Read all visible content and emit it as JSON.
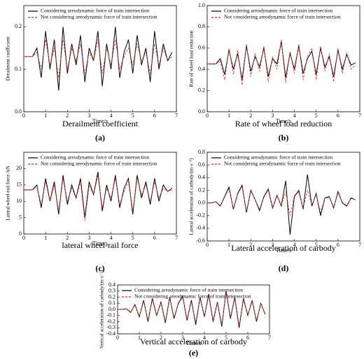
{
  "chart_data": [
    {
      "type": "line",
      "caption": "Derailment coefficient",
      "label": "(a)",
      "x_label": "Time/s",
      "y_label": "Derailment coefficient",
      "x": [
        0,
        0.2,
        0.4,
        0.6,
        0.8,
        1.0,
        1.2,
        1.4,
        1.6,
        1.8,
        2.0,
        2.2,
        2.4,
        2.6,
        2.8,
        3.0,
        3.2,
        3.4,
        3.6,
        3.8,
        4.0,
        4.2,
        4.4,
        4.6,
        4.8,
        5.0,
        5.2,
        5.4,
        5.6,
        5.8,
        6.0,
        6.2,
        6.4,
        6.6,
        6.8
      ],
      "series": [
        {
          "name": "Considering areodynamic force of train intersection",
          "color": "#000000",
          "values": [
            0.13,
            0.13,
            0.13,
            0.15,
            0.08,
            0.19,
            0.1,
            0.17,
            0.05,
            0.2,
            0.09,
            0.16,
            0.11,
            0.18,
            0.07,
            0.15,
            0.12,
            0.19,
            0.06,
            0.16,
            0.1,
            0.2,
            0.08,
            0.14,
            0.17,
            0.09,
            0.18,
            0.11,
            0.15,
            0.07,
            0.19,
            0.1,
            0.16,
            0.12,
            0.14
          ]
        },
        {
          "name": "Not considering areodynamic force of train intersection",
          "color": "#e8262a",
          "values": [
            0.13,
            0.13,
            0.13,
            0.14,
            0.1,
            0.17,
            0.11,
            0.15,
            0.08,
            0.17,
            0.1,
            0.15,
            0.12,
            0.16,
            0.09,
            0.14,
            0.12,
            0.17,
            0.09,
            0.15,
            0.11,
            0.17,
            0.1,
            0.13,
            0.15,
            0.11,
            0.16,
            0.12,
            0.14,
            0.09,
            0.16,
            0.11,
            0.15,
            0.12,
            0.13
          ]
        }
      ],
      "xlim": [
        0,
        7
      ],
      "xticks": [
        0,
        1,
        2,
        3,
        4,
        5,
        6,
        7
      ],
      "ylim": [
        0,
        0.25
      ],
      "yticks": [
        {
          "value": 0,
          "label": "0.0"
        },
        0.1,
        0.2
      ]
    },
    {
      "type": "line",
      "caption": "Rate of wheel load reduction",
      "label": "(b)",
      "x_label": "Time/s",
      "y_label": "Rate of wheel load reduction",
      "x": [
        0,
        0.2,
        0.4,
        0.6,
        0.8,
        1.0,
        1.2,
        1.4,
        1.6,
        1.8,
        2.0,
        2.2,
        2.4,
        2.6,
        2.8,
        3.0,
        3.2,
        3.4,
        3.6,
        3.8,
        4.0,
        4.2,
        4.4,
        4.6,
        4.8,
        5.0,
        5.2,
        5.4,
        5.6,
        5.8,
        6.0,
        6.2,
        6.4,
        6.6,
        6.8
      ],
      "series": [
        {
          "name": "Considering areodynamic force of train intersection",
          "color": "#000000",
          "values": [
            0.45,
            0.45,
            0.45,
            0.5,
            0.35,
            0.58,
            0.4,
            0.55,
            0.3,
            0.62,
            0.38,
            0.52,
            0.42,
            0.6,
            0.33,
            0.5,
            0.45,
            0.66,
            0.32,
            0.55,
            0.4,
            0.62,
            0.36,
            0.5,
            0.57,
            0.35,
            0.6,
            0.42,
            0.52,
            0.33,
            0.58,
            0.4,
            0.54,
            0.44,
            0.46
          ]
        },
        {
          "name": "Not considering areodynamic force of train intersection",
          "color": "#e8262a",
          "values": [
            0.45,
            0.45,
            0.45,
            0.48,
            0.3,
            0.6,
            0.35,
            0.58,
            0.25,
            0.64,
            0.33,
            0.55,
            0.38,
            0.62,
            0.28,
            0.52,
            0.4,
            0.68,
            0.27,
            0.57,
            0.36,
            0.64,
            0.3,
            0.52,
            0.6,
            0.3,
            0.62,
            0.38,
            0.55,
            0.28,
            0.6,
            0.36,
            0.56,
            0.4,
            0.44
          ]
        }
      ],
      "xlim": [
        0,
        7
      ],
      "xticks": [
        0,
        1,
        2,
        3,
        4,
        5,
        6,
        7
      ],
      "ylim": [
        0,
        1.0
      ],
      "yticks": [
        {
          "value": 0,
          "label": "0.0"
        },
        0.2,
        0.4,
        0.6,
        0.8,
        {
          "value": 1,
          "label": "1.0"
        }
      ]
    },
    {
      "type": "line",
      "caption": "lateral wheel-rail force",
      "label": "(c)",
      "x_label": "Time/s",
      "y_label": "Lateral wheel-rail force /kN",
      "x": [
        0,
        0.2,
        0.4,
        0.6,
        0.8,
        1.0,
        1.2,
        1.4,
        1.6,
        1.8,
        2.0,
        2.2,
        2.4,
        2.6,
        2.8,
        3.0,
        3.2,
        3.4,
        3.6,
        3.8,
        4.0,
        4.2,
        4.4,
        4.6,
        4.8,
        5.0,
        5.2,
        5.4,
        5.6,
        5.8,
        6.0,
        6.2,
        6.4,
        6.6,
        6.8
      ],
      "series": [
        {
          "name": "Considering areodynamic force of train intersection",
          "color": "#000000",
          "values": [
            13.5,
            13.5,
            13.5,
            15,
            8,
            17,
            10,
            16,
            6,
            18,
            9,
            15,
            11,
            17,
            5,
            16,
            12,
            19,
            7,
            15,
            10,
            18,
            8,
            14,
            17,
            6,
            18,
            11,
            16,
            9,
            17,
            10,
            15,
            13,
            14
          ]
        },
        {
          "name": "Not considering areodynamic force of train intersection",
          "color": "#e8262a",
          "values": [
            13.5,
            13.5,
            13.5,
            14.5,
            9,
            16,
            10,
            15,
            7,
            17,
            10,
            14,
            11,
            16,
            4,
            15,
            12,
            18,
            8,
            14,
            11,
            17,
            9,
            13,
            16,
            7,
            17,
            12,
            15,
            10,
            16,
            11,
            14,
            13,
            13.5
          ]
        }
      ],
      "xlim": [
        0,
        7
      ],
      "xticks": [
        0,
        1,
        2,
        3,
        4,
        5,
        6,
        7
      ],
      "ylim": [
        0,
        25
      ],
      "yticks": [
        0,
        5,
        10,
        15,
        20
      ]
    },
    {
      "type": "line",
      "caption": "Lateral acceleration of carbody",
      "label": "(d)",
      "x_label": "Time/s",
      "y_label": "Lateral acceleration of carbody/(m·s⁻²)",
      "x": [
        0,
        0.2,
        0.4,
        0.6,
        0.8,
        1.0,
        1.2,
        1.4,
        1.6,
        1.8,
        2.0,
        2.2,
        2.4,
        2.6,
        2.8,
        3.0,
        3.2,
        3.4,
        3.6,
        3.8,
        4.0,
        4.2,
        4.4,
        4.6,
        4.8,
        5.0,
        5.2,
        5.4,
        5.6,
        5.8,
        6.0,
        6.2,
        6.4,
        6.6,
        6.8
      ],
      "series": [
        {
          "name": "Considering areodynamic force of train intersection",
          "color": "#000000",
          "values": [
            0,
            0,
            0.02,
            -0.05,
            0.1,
            0.25,
            -0.1,
            0.15,
            0.28,
            -0.15,
            0.2,
            0.05,
            -0.12,
            0.1,
            0.22,
            -0.08,
            0.12,
            -0.05,
            0.35,
            -0.5,
            0.1,
            0.2,
            -0.1,
            0.45,
            -0.05,
            0.15,
            -0.2,
            0.08,
            0.1,
            -0.08,
            0.18,
            0,
            -0.05,
            0.08,
            0.05
          ]
        },
        {
          "name": "Not considering areodynamic force of train intersection",
          "color": "#e8262a",
          "values": [
            0,
            0,
            0.02,
            -0.04,
            0.09,
            0.23,
            -0.09,
            0.14,
            0.26,
            -0.13,
            0.19,
            0.05,
            -0.1,
            0.09,
            0.2,
            -0.07,
            0.11,
            -0.04,
            0.18,
            -0.2,
            0.12,
            0.17,
            -0.08,
            0.2,
            -0.03,
            0.13,
            -0.15,
            0.07,
            0.09,
            -0.07,
            0.16,
            0.01,
            -0.04,
            0.07,
            0.05
          ]
        }
      ],
      "xlim": [
        0,
        7
      ],
      "xticks": [
        0,
        1,
        2,
        3,
        4,
        5,
        6,
        7
      ],
      "ylim": [
        -0.6,
        0.8
      ],
      "yticks": [
        -0.6,
        -0.4,
        -0.2,
        {
          "value": 0,
          "label": "0.0"
        },
        0.2,
        0.4,
        0.6,
        0.8
      ]
    },
    {
      "type": "line",
      "caption": "Vertical acceleration of carbody",
      "label": "(e)",
      "x_label": "Time/s",
      "y_label": "Vertical acceleration of carbody/(m·s⁻²)",
      "x": [
        0,
        0.2,
        0.4,
        0.6,
        0.8,
        1.0,
        1.2,
        1.4,
        1.6,
        1.8,
        2.0,
        2.2,
        2.4,
        2.6,
        2.8,
        3.0,
        3.2,
        3.4,
        3.6,
        3.8,
        4.0,
        4.2,
        4.4,
        4.6,
        4.8,
        5.0,
        5.2,
        5.4,
        5.6,
        5.8,
        6.0,
        6.2,
        6.4,
        6.6,
        6.8
      ],
      "series": [
        {
          "name": "Considering areodynamic force of train intersection",
          "color": "#000000",
          "values": [
            0,
            0,
            0.01,
            -0.05,
            0.08,
            -0.12,
            0.15,
            -0.2,
            0.18,
            -0.1,
            0.12,
            -0.22,
            0.2,
            -0.15,
            0.1,
            0.22,
            -0.18,
            0.15,
            -0.25,
            0.2,
            -0.12,
            0.25,
            -0.2,
            0.12,
            -0.28,
            0.3,
            -0.15,
            0.2,
            -0.3,
            0.18,
            -0.1,
            0.15,
            -0.2,
            0.1,
            -0.08
          ]
        },
        {
          "name": "Not considering areodynamic force of train intersection",
          "color": "#e8262a",
          "values": [
            0,
            0,
            0.01,
            -0.04,
            0.07,
            -0.11,
            0.13,
            -0.18,
            0.16,
            -0.09,
            0.11,
            -0.2,
            0.18,
            -0.13,
            0.09,
            0.2,
            -0.16,
            0.13,
            -0.22,
            0.18,
            -0.11,
            0.22,
            -0.18,
            0.11,
            -0.25,
            0.27,
            -0.13,
            0.18,
            -0.27,
            0.16,
            -0.09,
            0.13,
            -0.18,
            0.09,
            -0.07
          ]
        }
      ],
      "xlim": [
        0,
        7
      ],
      "xticks": [
        0,
        1,
        2,
        3,
        4,
        5,
        6,
        7
      ],
      "ylim": [
        -0.4,
        0.4
      ],
      "yticks": [
        -0.4,
        -0.3,
        -0.2,
        -0.1,
        {
          "value": 0,
          "label": "0.0"
        },
        0.1,
        0.2,
        0.3,
        0.4
      ]
    }
  ]
}
